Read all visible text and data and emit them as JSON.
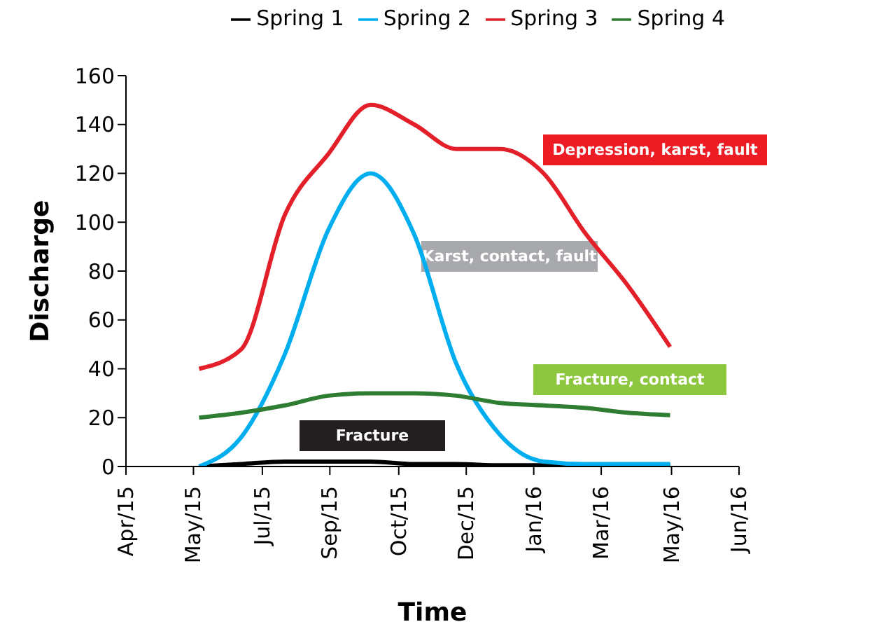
{
  "chart_data": {
    "type": "line",
    "xlabel": "Time",
    "ylabel": "Discharge",
    "x": [
      "2015-06-01",
      "2015-07-01",
      "2015-08-01",
      "2015-09-01",
      "2015-10-01",
      "2015-11-01",
      "2015-12-01",
      "2016-01-01",
      "2016-02-01",
      "2016-03-01",
      "2016-04-01",
      "2016-05-01"
    ],
    "series": [
      {
        "name": "Spring 1",
        "color": "#000000",
        "values": [
          0,
          1,
          2,
          2,
          2,
          1,
          1,
          0.5,
          0.5,
          0.5,
          0.5,
          0.5
        ]
      },
      {
        "name": "Spring 2",
        "color": "#00aeef",
        "values": [
          0,
          12,
          46,
          97,
          120,
          95,
          42,
          13,
          2,
          1,
          1,
          1
        ]
      },
      {
        "name": "Spring 3",
        "color": "#e3202a",
        "values": [
          40,
          48,
          103,
          128,
          148,
          140,
          130,
          130,
          120,
          96,
          74,
          49
        ]
      },
      {
        "name": "Spring 4",
        "color": "#2e7d32",
        "values": [
          20,
          22,
          25,
          29,
          30,
          30,
          29,
          26,
          25,
          24,
          22,
          21
        ]
      }
    ],
    "xlim": [
      "2015-04-10",
      "2016-06-19"
    ],
    "xticks": [
      {
        "value": "2015-04-10",
        "label": "Apr/15"
      },
      {
        "value": "2015-05-28",
        "label": "May/15"
      },
      {
        "value": "2015-07-16",
        "label": "Jul/15"
      },
      {
        "value": "2015-09-02",
        "label": "Sep/15"
      },
      {
        "value": "2015-10-21",
        "label": "Oct/15"
      },
      {
        "value": "2015-12-08",
        "label": "Dec/15"
      },
      {
        "value": "2016-01-25",
        "label": "Jan/16"
      },
      {
        "value": "2016-03-13",
        "label": "Mar/16"
      },
      {
        "value": "2016-05-02",
        "label": "May/16"
      },
      {
        "value": "2016-06-19",
        "label": "Jun/16"
      }
    ],
    "ylim": [
      0,
      160
    ],
    "yticks": [
      0,
      20,
      40,
      60,
      80,
      100,
      120,
      140,
      160
    ],
    "annotations": [
      "Depression, karst, fault",
      "Karst, contact, fault",
      "Fracture, contact",
      "Fracture"
    ],
    "grid": false,
    "legend": "top right",
    "marker": "none",
    "line_style": "solid"
  }
}
